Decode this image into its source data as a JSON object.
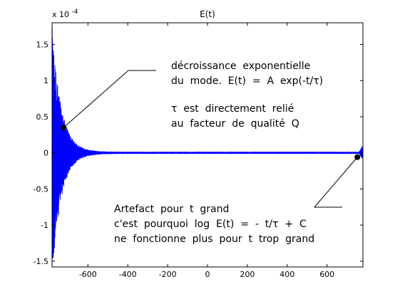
{
  "chart_data": {
    "type": "line",
    "title": "E(t)",
    "xlabel": "",
    "ylabel": "",
    "y_exponent_label": "x 10",
    "y_exponent_power": "-4",
    "xlim": [
      -780,
      780
    ],
    "ylim": [
      -1.58,
      1.8
    ],
    "x_ticks": [
      -600,
      -400,
      -200,
      0,
      200,
      400,
      600
    ],
    "x_tick_labels": [
      "-600",
      "-400",
      "-200",
      "0",
      "200",
      "400",
      "600"
    ],
    "y_ticks": [
      -1.5,
      -1,
      -0.5,
      0,
      0.5,
      1,
      1.5
    ],
    "y_tick_labels": [
      "-1.5",
      "-1",
      "-0.5",
      "0",
      "0.5",
      "1",
      "1.5"
    ],
    "series": [
      {
        "color": "#0000ff",
        "envelope": {
          "start_x": -780,
          "start_amplitude": 1.75,
          "decay_constant_x": 45,
          "floor_amplitude": 0.015,
          "end_artifact_start_x": 760,
          "end_artifact_amplitude": 0.09
        }
      }
    ],
    "markers": [
      {
        "x": -722,
        "y": 0.35,
        "color": "#000000"
      },
      {
        "x": 752,
        "y": -0.06,
        "color": "#000000"
      }
    ],
    "grid": false,
    "legend": "none"
  },
  "annotations": {
    "top_line1": "décroissance  exponentielle",
    "top_line2": "du  mode.  E(t)  =  A  exp(-t/τ)",
    "tau_line1": "τ  est  directement  relié",
    "tau_line2": "au  facteur  de  qualité  Q",
    "bottom_line1": "Artefact  pour  t  grand",
    "bottom_line2": "c'est  pourquoi  log  E(t)  =  -  t/τ  +  C",
    "bottom_line3": "ne  fonctionne  plus  pour  t  trop  grand"
  }
}
